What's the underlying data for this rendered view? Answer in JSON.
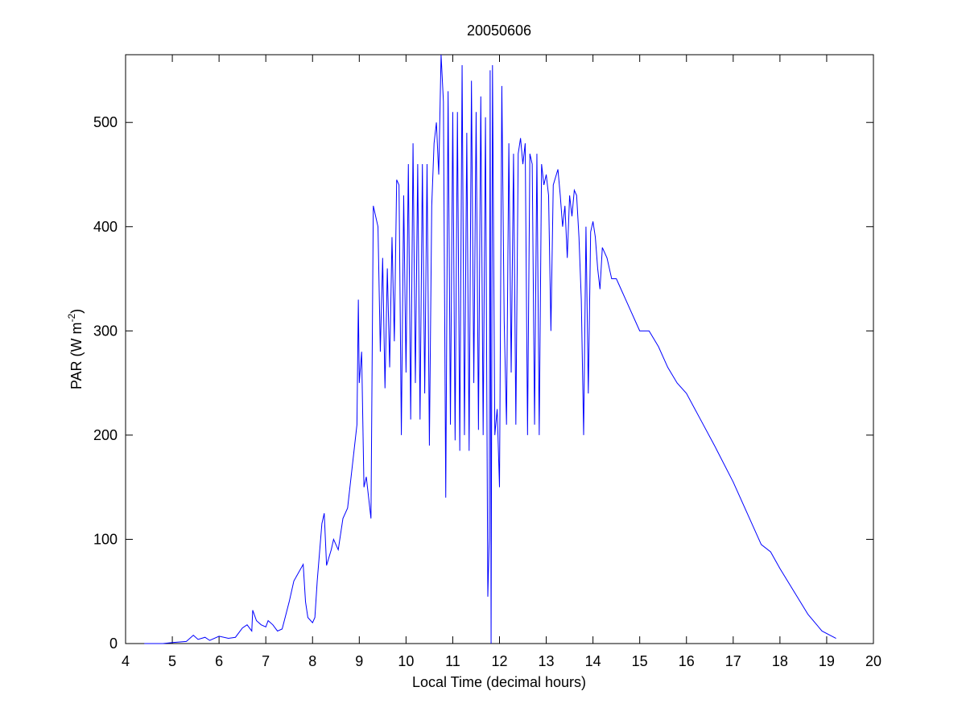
{
  "chart_data": {
    "type": "line",
    "title": "20050606",
    "xlabel": "Local Time (decimal hours)",
    "ylabel_parts": [
      "PAR (W m",
      "-2",
      ")"
    ],
    "x": [
      4.4,
      4.8,
      5.0,
      5.3,
      5.45,
      5.55,
      5.7,
      5.8,
      6.0,
      6.2,
      6.35,
      6.5,
      6.6,
      6.7,
      6.72,
      6.8,
      6.9,
      7.0,
      7.05,
      7.15,
      7.25,
      7.35,
      7.5,
      7.6,
      7.7,
      7.8,
      7.85,
      7.9,
      8.0,
      8.05,
      8.1,
      8.2,
      8.25,
      8.3,
      8.4,
      8.45,
      8.55,
      8.65,
      8.75,
      8.85,
      8.95,
      8.98,
      9.0,
      9.05,
      9.1,
      9.15,
      9.2,
      9.25,
      9.3,
      9.35,
      9.4,
      9.45,
      9.5,
      9.55,
      9.6,
      9.65,
      9.7,
      9.75,
      9.8,
      9.85,
      9.9,
      9.95,
      10.0,
      10.05,
      10.1,
      10.15,
      10.2,
      10.25,
      10.3,
      10.35,
      10.4,
      10.45,
      10.5,
      10.55,
      10.6,
      10.65,
      10.7,
      10.75,
      10.8,
      10.85,
      10.9,
      10.95,
      11.0,
      11.05,
      11.1,
      11.15,
      11.2,
      11.25,
      11.3,
      11.35,
      11.4,
      11.45,
      11.5,
      11.55,
      11.6,
      11.65,
      11.7,
      11.75,
      11.78,
      11.8,
      11.82,
      11.85,
      11.9,
      11.95,
      12.0,
      12.05,
      12.1,
      12.15,
      12.2,
      12.25,
      12.3,
      12.35,
      12.4,
      12.45,
      12.5,
      12.55,
      12.6,
      12.65,
      12.7,
      12.75,
      12.8,
      12.85,
      12.9,
      12.95,
      13.0,
      13.05,
      13.1,
      13.15,
      13.25,
      13.3,
      13.35,
      13.4,
      13.45,
      13.5,
      13.55,
      13.6,
      13.65,
      13.7,
      13.75,
      13.8,
      13.85,
      13.9,
      13.95,
      14.0,
      14.05,
      14.1,
      14.15,
      14.2,
      14.3,
      14.4,
      14.5,
      14.6,
      14.7,
      14.8,
      14.9,
      15.0,
      15.2,
      15.4,
      15.6,
      15.8,
      16.0,
      16.3,
      16.6,
      17.0,
      17.3,
      17.6,
      17.8,
      18.0,
      18.3,
      18.6,
      18.9,
      19.2
    ],
    "series": [
      {
        "color": "#0000ff",
        "values": [
          0,
          0,
          1,
          2,
          8,
          4,
          6,
          3,
          7,
          5,
          6,
          15,
          18,
          12,
          32,
          22,
          18,
          16,
          22,
          18,
          12,
          14,
          40,
          60,
          68,
          76,
          40,
          25,
          20,
          25,
          60,
          115,
          125,
          75,
          90,
          100,
          90,
          120,
          130,
          170,
          210,
          330,
          250,
          280,
          150,
          160,
          140,
          120,
          420,
          410,
          400,
          280,
          370,
          245,
          360,
          265,
          390,
          290,
          445,
          440,
          200,
          430,
          260,
          460,
          215,
          480,
          250,
          460,
          215,
          460,
          240,
          460,
          190,
          420,
          480,
          500,
          450,
          565,
          520,
          140,
          530,
          210,
          510,
          195,
          510,
          185,
          555,
          200,
          490,
          185,
          540,
          250,
          510,
          205,
          525,
          200,
          505,
          45,
          100,
          550,
          0,
          555,
          200,
          225,
          150,
          535,
          310,
          210,
          480,
          260,
          470,
          210,
          470,
          485,
          460,
          480,
          200,
          470,
          460,
          210,
          470,
          200,
          460,
          440,
          450,
          430,
          300,
          440,
          455,
          430,
          400,
          420,
          370,
          430,
          410,
          435,
          430,
          390,
          330,
          200,
          400,
          240,
          395,
          405,
          390,
          360,
          340,
          380,
          370,
          350,
          350,
          340,
          330,
          320,
          310,
          300,
          300,
          285,
          265,
          250,
          240,
          215,
          190,
          155,
          125,
          95,
          88,
          72,
          50,
          28,
          12,
          5
        ]
      }
    ],
    "xlim": [
      4,
      20
    ],
    "ylim": [
      0,
      565
    ],
    "xticks": [
      4,
      5,
      6,
      7,
      8,
      9,
      10,
      11,
      12,
      13,
      14,
      15,
      16,
      17,
      18,
      19,
      20
    ],
    "yticks": [
      0,
      100,
      200,
      300,
      400,
      500
    ]
  }
}
